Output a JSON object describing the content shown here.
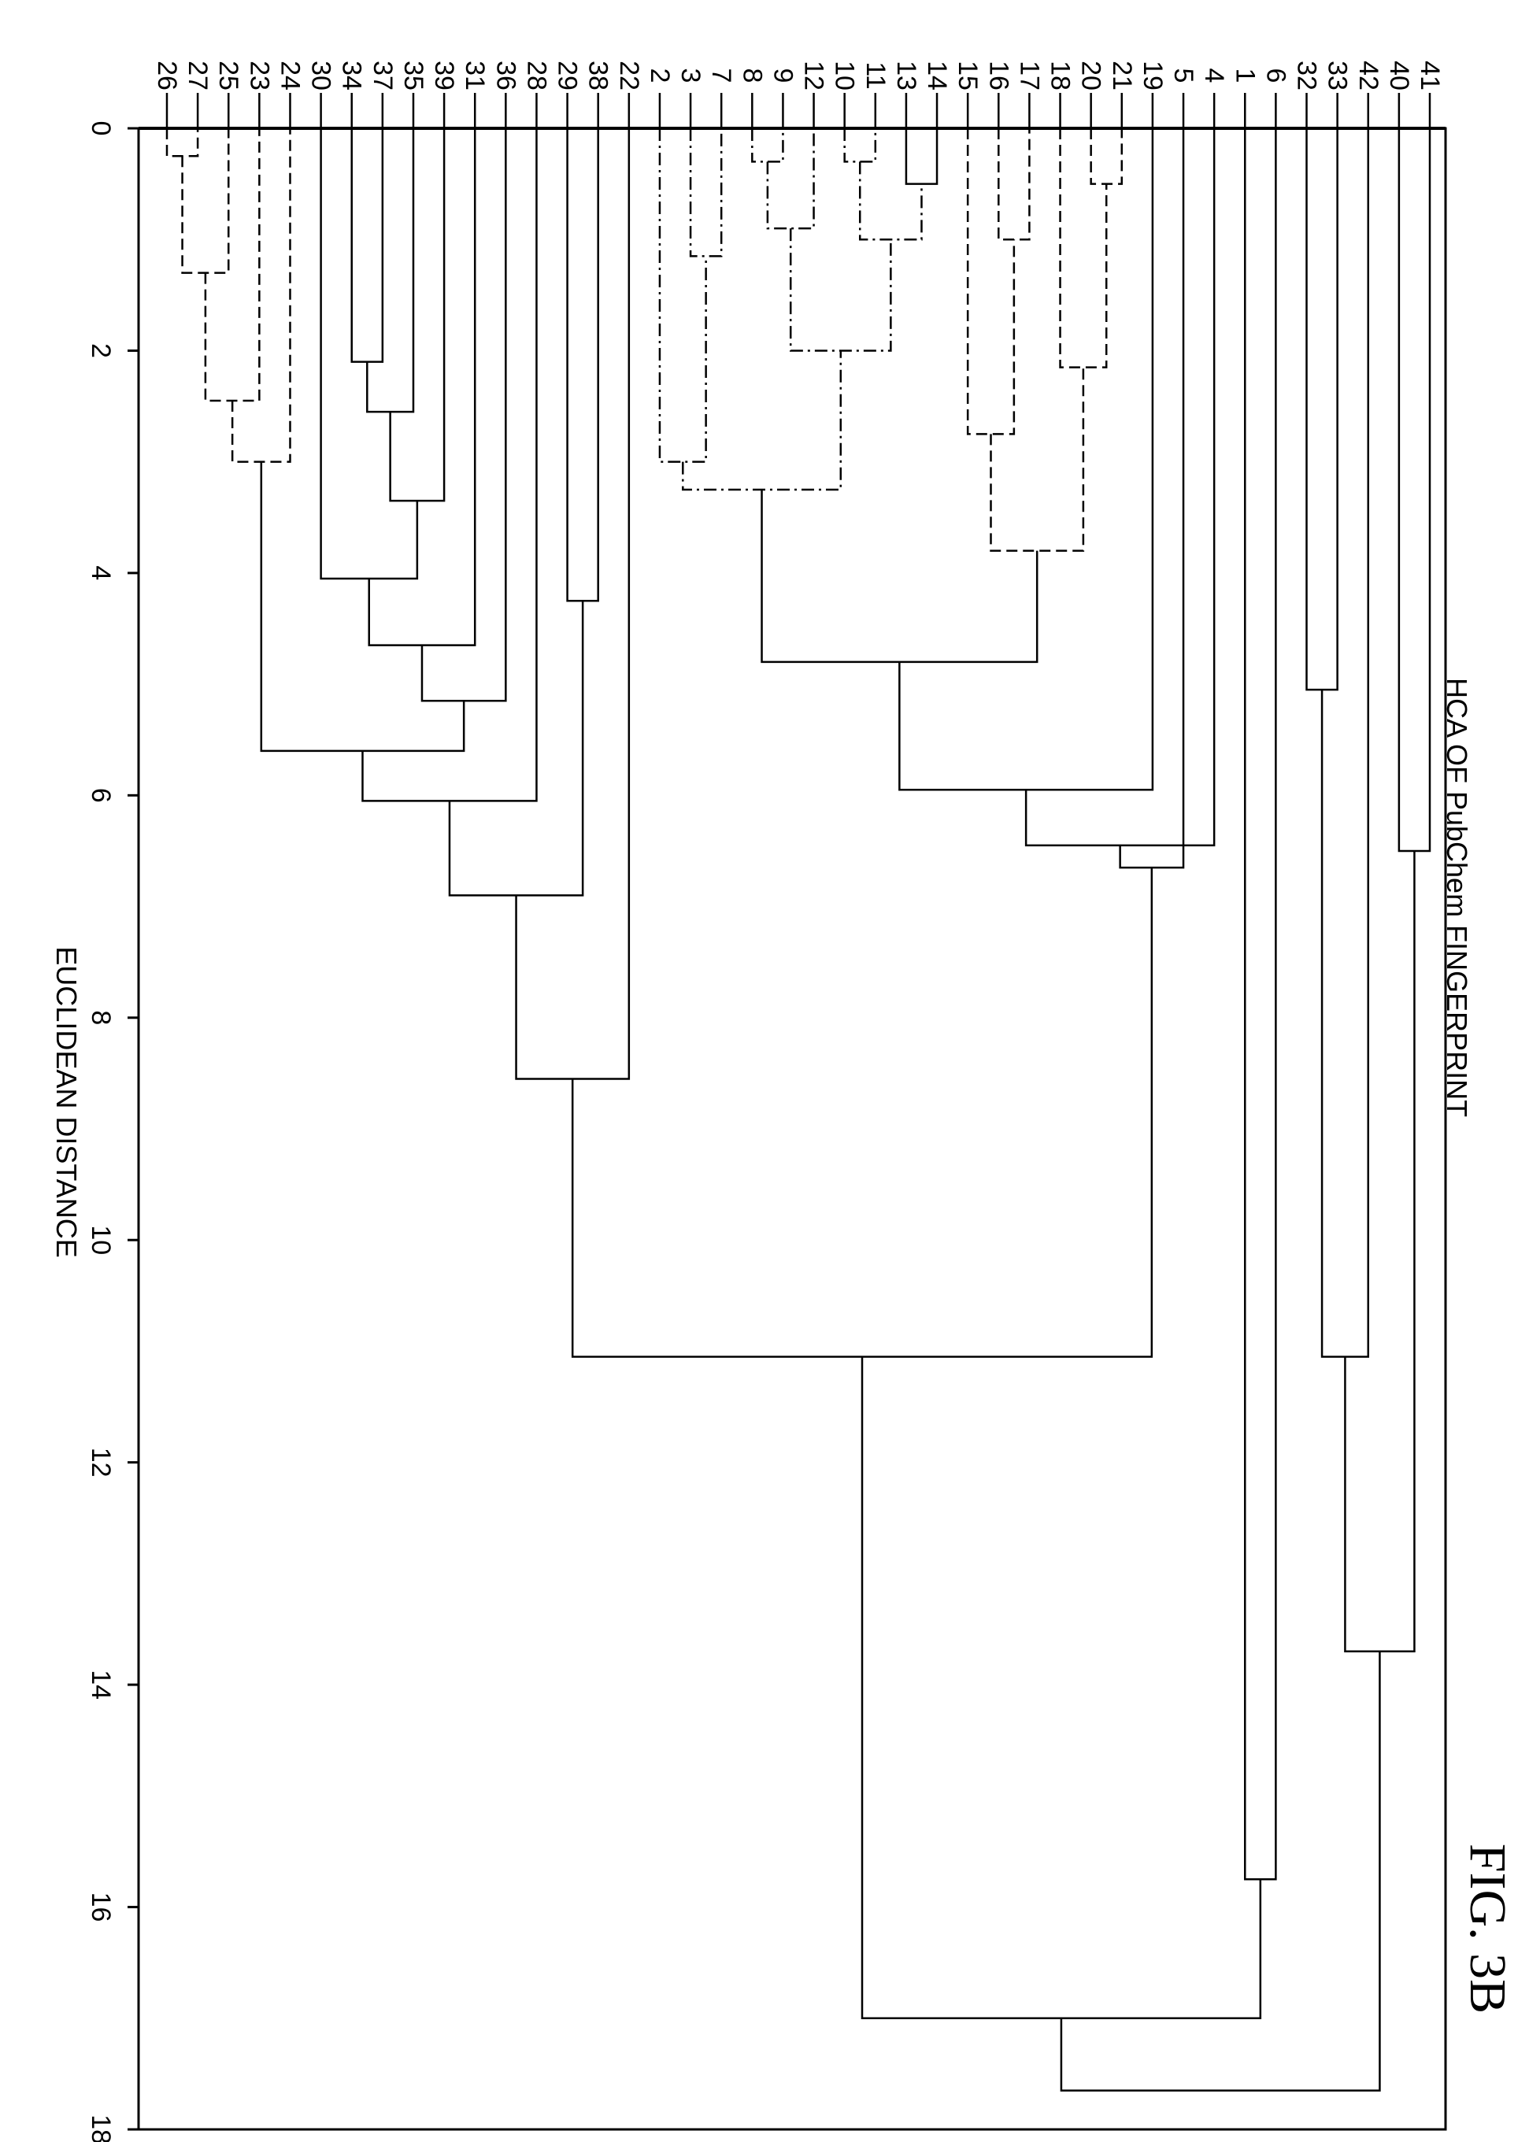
{
  "chart_data": {
    "type": "dendrogram",
    "title": "HCA OF PubChem FINGERPRINT",
    "figure_label": "FIG. 3B",
    "axis_label": "EUCLIDEAN DISTANCE",
    "axis_range": [
      0,
      18
    ],
    "ticks": [
      "0",
      "2",
      "4",
      "6",
      "8",
      "10",
      "12",
      "14",
      "16",
      "18"
    ],
    "leaf_order": [
      "26",
      "27",
      "25",
      "23",
      "24",
      "30",
      "34",
      "37",
      "35",
      "39",
      "31",
      "36",
      "28",
      "29",
      "38",
      "22",
      "2",
      "3",
      "7",
      "8",
      "9",
      "12",
      "10",
      "11",
      "13",
      "14",
      "15",
      "16",
      "17",
      "18",
      "20",
      "21",
      "19",
      "5",
      "4",
      "1",
      "6",
      "32",
      "33",
      "42",
      "40",
      "41"
    ],
    "merges": [
      {
        "id": "m1",
        "children": [
          "26",
          "27"
        ],
        "height": 0.25,
        "style": "dashed"
      },
      {
        "id": "m2",
        "children": [
          "m1",
          "25"
        ],
        "height": 1.3,
        "style": "dashed"
      },
      {
        "id": "m3",
        "children": [
          "m2",
          "23"
        ],
        "height": 2.45,
        "style": "dashed"
      },
      {
        "id": "m4",
        "children": [
          "m3",
          "24"
        ],
        "height": 3.0,
        "style": "dashed"
      },
      {
        "id": "m5",
        "children": [
          "34",
          "37"
        ],
        "height": 2.1,
        "style": "solid"
      },
      {
        "id": "m6",
        "children": [
          "m5",
          "35"
        ],
        "height": 2.55,
        "style": "solid"
      },
      {
        "id": "m7",
        "children": [
          "m6",
          "39"
        ],
        "height": 3.35,
        "style": "solid"
      },
      {
        "id": "m8",
        "children": [
          "30",
          "m7"
        ],
        "height": 4.05,
        "style": "solid"
      },
      {
        "id": "m9",
        "children": [
          "m8",
          "31"
        ],
        "height": 4.65,
        "style": "solid"
      },
      {
        "id": "m10",
        "children": [
          "m9",
          "36"
        ],
        "height": 5.15,
        "style": "solid"
      },
      {
        "id": "m11",
        "children": [
          "m4",
          "m10"
        ],
        "height": 5.6,
        "style": "solid"
      },
      {
        "id": "m12",
        "children": [
          "m11",
          "28"
        ],
        "height": 6.05,
        "style": "solid"
      },
      {
        "id": "m13",
        "children": [
          "29",
          "38"
        ],
        "height": 4.25,
        "style": "solid"
      },
      {
        "id": "m14",
        "children": [
          "m12",
          "m13"
        ],
        "height": 6.9,
        "style": "solid"
      },
      {
        "id": "m15",
        "children": [
          "m14",
          "22"
        ],
        "height": 8.55,
        "style": "solid"
      },
      {
        "id": "m16",
        "children": [
          "3",
          "7"
        ],
        "height": 1.15,
        "style": "dashdot"
      },
      {
        "id": "m17",
        "children": [
          "2",
          "m16"
        ],
        "height": 3.0,
        "style": "dashdot"
      },
      {
        "id": "m18",
        "children": [
          "8",
          "9"
        ],
        "height": 0.3,
        "style": "dashdot"
      },
      {
        "id": "m19",
        "children": [
          "m18",
          "12"
        ],
        "height": 0.9,
        "style": "dashdot"
      },
      {
        "id": "m20",
        "children": [
          "10",
          "11"
        ],
        "height": 0.3,
        "style": "dashdot"
      },
      {
        "id": "m21",
        "children": [
          "13",
          "14"
        ],
        "height": 0.5,
        "style": "solid"
      },
      {
        "id": "m22",
        "children": [
          "m20",
          "m21"
        ],
        "height": 1.0,
        "style": "dashdot"
      },
      {
        "id": "m23",
        "children": [
          "m19",
          "m22"
        ],
        "height": 2.0,
        "style": "dashdot"
      },
      {
        "id": "m24",
        "children": [
          "m17",
          "m23"
        ],
        "height": 3.25,
        "style": "dashdot"
      },
      {
        "id": "m25",
        "children": [
          "16",
          "17"
        ],
        "height": 1.0,
        "style": "dashed"
      },
      {
        "id": "m26",
        "children": [
          "15",
          "m25"
        ],
        "height": 2.75,
        "style": "dashed"
      },
      {
        "id": "m27",
        "children": [
          "20",
          "21"
        ],
        "height": 0.5,
        "style": "dashed"
      },
      {
        "id": "m28",
        "children": [
          "18",
          "m27"
        ],
        "height": 2.15,
        "style": "dashed"
      },
      {
        "id": "m29",
        "children": [
          "m26",
          "m28"
        ],
        "height": 3.8,
        "style": "dashed"
      },
      {
        "id": "m30",
        "children": [
          "m24",
          "m29"
        ],
        "height": 4.8,
        "style": "solid"
      },
      {
        "id": "m31",
        "children": [
          "m30",
          "19"
        ],
        "height": 5.95,
        "style": "solid"
      },
      {
        "id": "m32",
        "children": [
          "m31",
          "4"
        ],
        "height": 6.45,
        "style": "solid"
      },
      {
        "id": "m33",
        "children": [
          "m32",
          "5"
        ],
        "height": 6.65,
        "style": "solid"
      },
      {
        "id": "m34",
        "children": [
          "m15",
          "m33"
        ],
        "height": 11.05,
        "style": "solid"
      },
      {
        "id": "m35",
        "children": [
          "1",
          "6"
        ],
        "height": 15.75,
        "style": "solid"
      },
      {
        "id": "m36",
        "children": [
          "m34",
          "m35"
        ],
        "height": 17.0,
        "style": "solid"
      },
      {
        "id": "m37",
        "children": [
          "32",
          "33"
        ],
        "height": 5.05,
        "style": "solid"
      },
      {
        "id": "m38",
        "children": [
          "m37",
          "42"
        ],
        "height": 11.05,
        "style": "solid"
      },
      {
        "id": "m39",
        "children": [
          "40",
          "41"
        ],
        "height": 6.5,
        "style": "solid"
      },
      {
        "id": "m40",
        "children": [
          "m38",
          "m39"
        ],
        "height": 13.7,
        "style": "solid"
      },
      {
        "id": "m41",
        "children": [
          "m36",
          "m40"
        ],
        "height": 17.65,
        "style": "solid"
      }
    ]
  }
}
